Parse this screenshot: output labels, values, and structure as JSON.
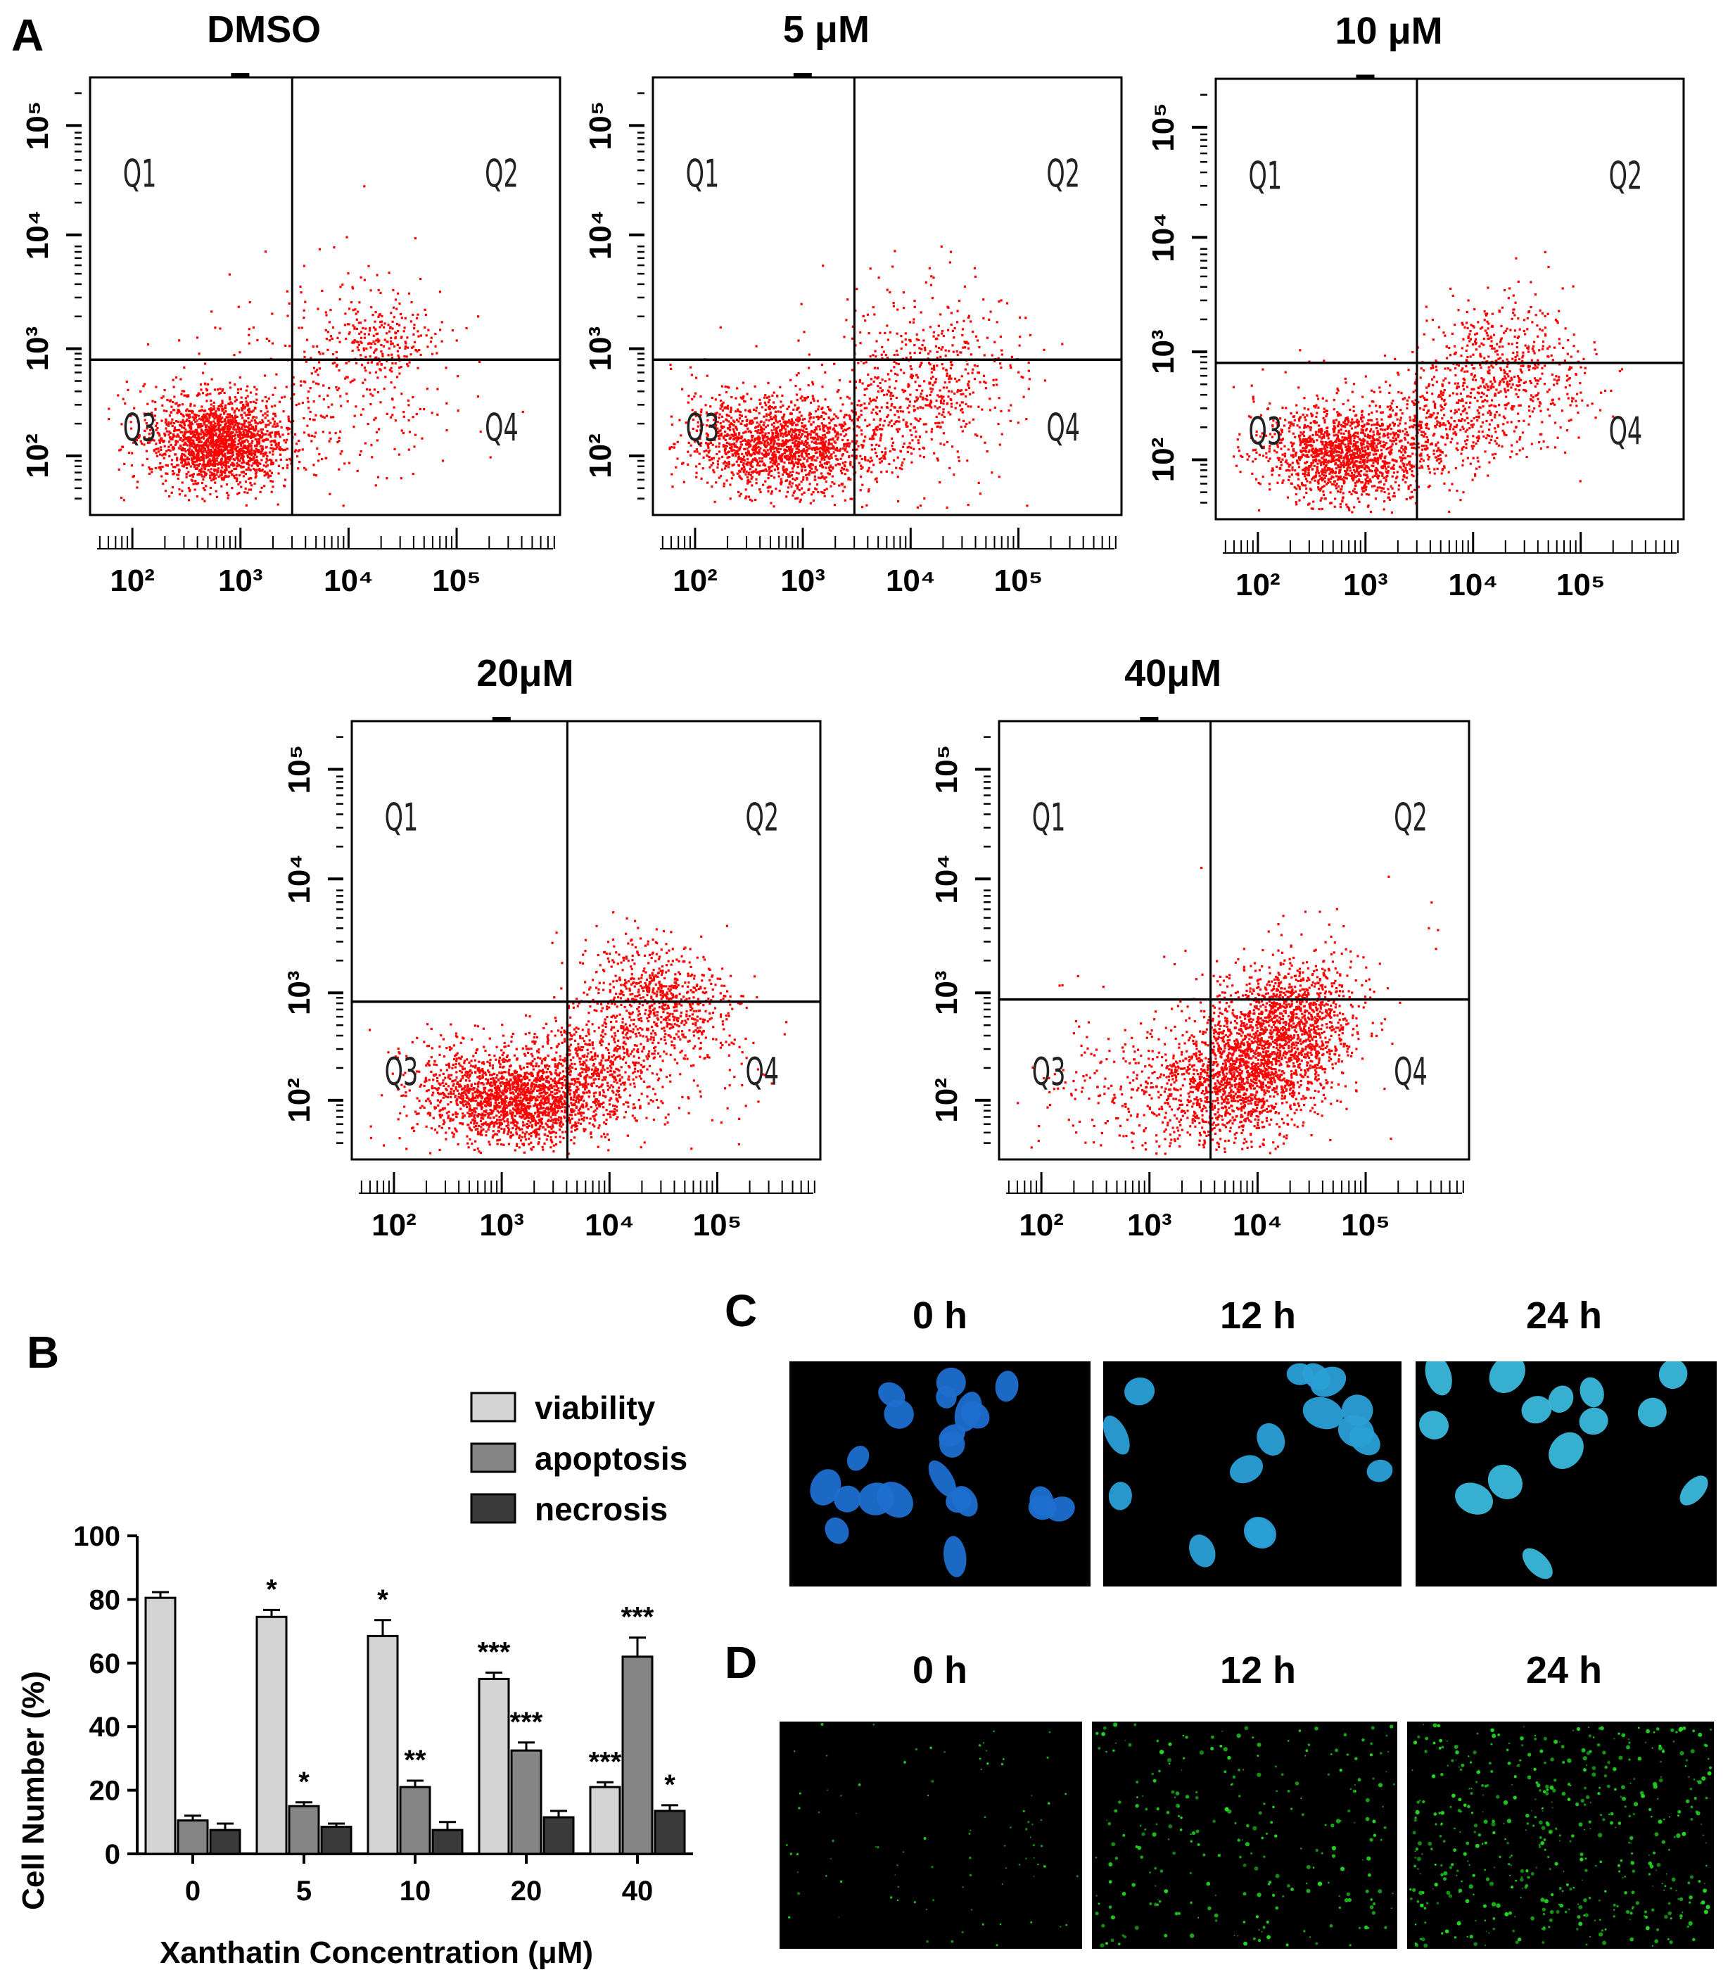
{
  "figure": {
    "panel_labels": [
      "A",
      "B",
      "C",
      "D"
    ]
  },
  "flow": {
    "x_ticks": [
      "10²",
      "10³",
      "10⁴",
      "10⁵"
    ],
    "y_ticks": [
      "10²",
      "10³",
      "10⁴",
      "10⁵"
    ],
    "quadrants": [
      "Q1",
      "Q2",
      "Q3",
      "Q4"
    ],
    "plots": [
      {
        "title": "DMSO"
      },
      {
        "title": "5 μM"
      },
      {
        "title": "10 μM"
      },
      {
        "title": "20μM"
      },
      {
        "title": "40μM"
      }
    ]
  },
  "chart_data": {
    "type": "bar",
    "title": "",
    "xlabel": "Xanthatin Concentration (μM)",
    "ylabel": "Cell Number (%)",
    "ylim": [
      0,
      100
    ],
    "y_ticks": [
      0,
      20,
      40,
      60,
      80,
      100
    ],
    "categories": [
      "0",
      "5",
      "10",
      "20",
      "40"
    ],
    "series": [
      {
        "name": "viability",
        "color": "#d4d4d4",
        "values": [
          80.5,
          74.5,
          68.5,
          55,
          21
        ],
        "errors": [
          1.8,
          2.2,
          5,
          2,
          1.5
        ],
        "stars": [
          "",
          "*",
          "*",
          "***",
          "***"
        ]
      },
      {
        "name": "apoptosis",
        "color": "#858585",
        "values": [
          10.5,
          15,
          21,
          32.5,
          62
        ],
        "errors": [
          1.5,
          1.2,
          2,
          2.5,
          6
        ],
        "stars": [
          "",
          "*",
          "**",
          "***",
          "***"
        ]
      },
      {
        "name": "necrosis",
        "color": "#3a3a3a",
        "values": [
          7.5,
          8.5,
          7.5,
          11.5,
          13.5
        ],
        "errors": [
          2,
          1,
          2.5,
          2,
          1.8
        ],
        "stars": [
          "",
          "",
          "",
          "",
          "*"
        ]
      }
    ]
  },
  "panel_c": {
    "times": [
      "0 h",
      "12 h",
      "24 h"
    ]
  },
  "panel_d": {
    "times": [
      "0 h",
      "12 h",
      "24 h"
    ]
  },
  "colors": {
    "dots": "#ff0000",
    "nuclei": "#2a9fd6",
    "fluor": "#22dd22"
  }
}
